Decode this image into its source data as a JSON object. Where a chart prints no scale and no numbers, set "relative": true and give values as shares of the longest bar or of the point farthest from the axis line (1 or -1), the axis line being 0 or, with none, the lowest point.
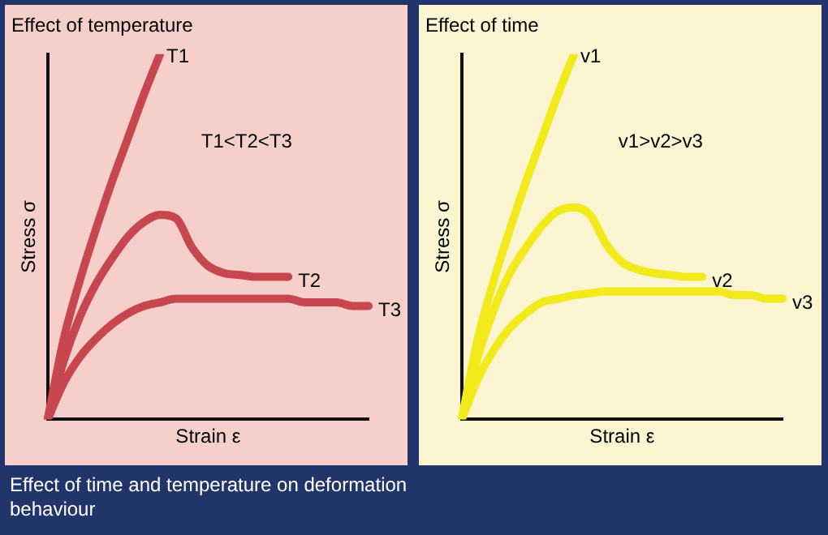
{
  "chart_data": [
    {
      "type": "line",
      "title": "Effect of temperature",
      "xlabel": "Strain ε",
      "ylabel": "Stress σ",
      "relative": true,
      "annotations": [
        "T1<T2<T3"
      ],
      "categories": [
        null,
        null,
        null,
        null,
        null,
        null,
        null,
        null,
        null,
        null,
        null,
        null,
        null,
        null,
        null,
        null,
        null,
        null,
        null,
        null,
        null
      ],
      "series": [
        {
          "name": "T1",
          "color": "#c8464e",
          "values": [
            0,
            0.22,
            0.38,
            0.52,
            0.65,
            0.77,
            0.89,
            1,
            null,
            null,
            null,
            null,
            null,
            null,
            null,
            null,
            null,
            null,
            null,
            null,
            null
          ]
        },
        {
          "name": "T2",
          "color": "#c8464e",
          "values": [
            0,
            0.16,
            0.28,
            0.37,
            0.44,
            0.5,
            0.54,
            0.56,
            0.55,
            0.47,
            0.42,
            0.4,
            0.395,
            0.39,
            0.39,
            0.39,
            null,
            null,
            null,
            null,
            null
          ]
        },
        {
          "name": "T3",
          "color": "#c8464e",
          "values": [
            0,
            0.1,
            0.17,
            0.22,
            0.26,
            0.29,
            0.31,
            0.32,
            0.33,
            0.33,
            0.33,
            0.33,
            0.33,
            0.33,
            0.33,
            0.33,
            0.32,
            0.32,
            0.32,
            0.31,
            0.31
          ]
        }
      ]
    },
    {
      "type": "line",
      "title": "Effect of time",
      "xlabel": "Strain ε",
      "ylabel": "Stress σ",
      "relative": true,
      "annotations": [
        "v1>v2>v3"
      ],
      "categories": [
        null,
        null,
        null,
        null,
        null,
        null,
        null,
        null,
        null,
        null,
        null,
        null,
        null,
        null,
        null,
        null,
        null,
        null,
        null,
        null,
        null
      ],
      "series": [
        {
          "name": "v1",
          "color": "#f2ea1a",
          "values": [
            0,
            0.22,
            0.38,
            0.52,
            0.65,
            0.77,
            0.89,
            1,
            null,
            null,
            null,
            null,
            null,
            null,
            null,
            null,
            null,
            null,
            null,
            null,
            null
          ]
        },
        {
          "name": "v2",
          "color": "#f2ea1a",
          "values": [
            0,
            0.17,
            0.3,
            0.4,
            0.47,
            0.53,
            0.57,
            0.58,
            0.56,
            0.48,
            0.43,
            0.41,
            0.4,
            0.395,
            0.39,
            0.39,
            null,
            null,
            null,
            null,
            null
          ]
        },
        {
          "name": "v3",
          "color": "#f2ea1a",
          "values": [
            0,
            0.11,
            0.19,
            0.25,
            0.29,
            0.32,
            0.33,
            0.34,
            0.345,
            0.35,
            0.35,
            0.35,
            0.35,
            0.35,
            0.35,
            0.35,
            0.35,
            0.34,
            0.34,
            0.33,
            0.33
          ]
        }
      ]
    },
    {
      "type": "other",
      "annotations": [
        "Effect of time and temperature on deformation behaviour"
      ]
    }
  ]
}
